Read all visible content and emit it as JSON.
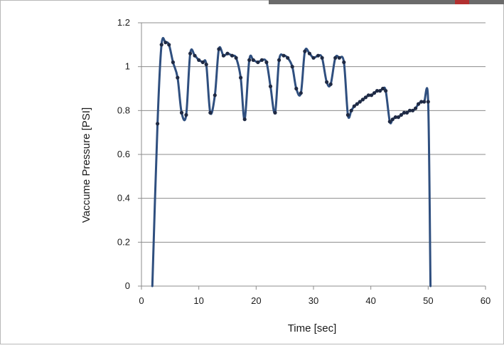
{
  "colors": {
    "line": "#2f4f7f",
    "marker": "#1f2a44",
    "grid": "#8c8c8c",
    "frame": "#b8b8b8"
  },
  "chart_data": {
    "type": "scatter",
    "title": "",
    "xlabel": "Time  [sec]",
    "ylabel": "Vaccume Pressure  [PSI]",
    "xlim": [
      0,
      60
    ],
    "ylim": [
      0,
      1.2
    ],
    "x_ticks": [
      0,
      10,
      20,
      30,
      40,
      50,
      60
    ],
    "y_ticks": [
      0,
      0.2,
      0.4,
      0.6,
      0.8,
      1,
      1.2
    ],
    "x_tick_labels": [
      "0",
      "10",
      "20",
      "30",
      "40",
      "50",
      "60"
    ],
    "y_tick_labels": [
      "0",
      "0.2",
      "0.4",
      "0.6",
      "0.8",
      "1",
      "1.2"
    ],
    "grid": "horizontal",
    "legend": "none",
    "series": [
      {
        "x": [
          1.9,
          2.8,
          3.5,
          4.2,
          4.8,
          5.5,
          6.3,
          7.0,
          7.8,
          8.5,
          9.3,
          10.0,
          10.7,
          11.3,
          12.0,
          12.8,
          13.5,
          14.3,
          15.0,
          15.8,
          16.5,
          17.3,
          18.0,
          18.8,
          19.5,
          20.3,
          21.0,
          21.8,
          22.5,
          23.3,
          24.0,
          24.8,
          25.5,
          26.3,
          27.0,
          27.8,
          28.5,
          29.3,
          30.0,
          30.8,
          31.5,
          32.3,
          33.0,
          33.8,
          34.5,
          35.3,
          36.0,
          36.6,
          37.1,
          37.6,
          38.1,
          38.6,
          39.1,
          39.6,
          40.1,
          40.6,
          41.1,
          41.6,
          42.1,
          42.6,
          43.3,
          43.8,
          44.3,
          44.8,
          45.3,
          45.8,
          46.3,
          46.8,
          47.3,
          47.8,
          48.3,
          48.8,
          49.3,
          50.0,
          50.4
        ],
        "y": [
          0.0,
          0.74,
          1.1,
          1.11,
          1.1,
          1.02,
          0.95,
          0.79,
          0.78,
          1.06,
          1.05,
          1.03,
          1.02,
          1.01,
          0.79,
          0.87,
          1.08,
          1.05,
          1.06,
          1.05,
          1.04,
          0.95,
          0.76,
          1.03,
          1.03,
          1.02,
          1.03,
          1.02,
          0.91,
          0.79,
          1.03,
          1.05,
          1.04,
          1.0,
          0.9,
          0.88,
          1.07,
          1.06,
          1.04,
          1.05,
          1.04,
          0.93,
          0.92,
          1.04,
          1.04,
          1.02,
          0.78,
          0.8,
          0.82,
          0.83,
          0.84,
          0.85,
          0.86,
          0.87,
          0.87,
          0.88,
          0.89,
          0.89,
          0.9,
          0.89,
          0.75,
          0.76,
          0.77,
          0.77,
          0.78,
          0.79,
          0.79,
          0.8,
          0.8,
          0.81,
          0.83,
          0.84,
          0.84,
          0.84,
          0.0
        ]
      }
    ]
  }
}
